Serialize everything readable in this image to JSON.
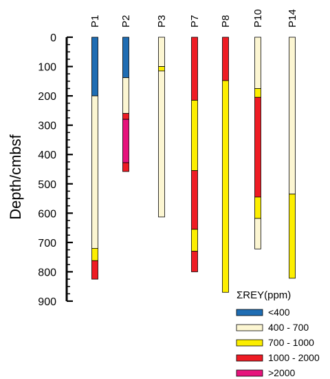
{
  "chart_data": {
    "type": "bar",
    "ylabel": "Depth/cmbsf",
    "ylim": [
      0,
      900
    ],
    "y_inverted": true,
    "y_ticks": [
      0,
      100,
      200,
      300,
      400,
      500,
      600,
      700,
      800,
      900
    ],
    "grid": false,
    "legend_position": "bottom-right",
    "categories": [
      "P1",
      "P2",
      "P3",
      "P7",
      "P8",
      "P10",
      "P14"
    ],
    "legend": {
      "title": "ΣREY(ppm)",
      "classes": [
        {
          "id": "lt400",
          "label": "<400",
          "color": "#1f6db3"
        },
        {
          "id": "c400",
          "label": "400 - 700",
          "color": "#fcf6d2"
        },
        {
          "id": "c700",
          "label": "700 - 1000",
          "color": "#fcee00"
        },
        {
          "id": "c1000",
          "label": "1000 - 2000",
          "color": "#ee1c24"
        },
        {
          "id": "gt2000",
          "label": ">2000",
          "color": "#e6137c"
        }
      ]
    },
    "cores": [
      {
        "name": "P1",
        "segments": [
          {
            "from": 0,
            "to": 200,
            "class": "lt400"
          },
          {
            "from": 200,
            "to": 720,
            "class": "c400"
          },
          {
            "from": 720,
            "to": 762,
            "class": "c700"
          },
          {
            "from": 762,
            "to": 825,
            "class": "c1000"
          }
        ]
      },
      {
        "name": "P2",
        "segments": [
          {
            "from": 0,
            "to": 138,
            "class": "lt400"
          },
          {
            "from": 138,
            "to": 260,
            "class": "c400"
          },
          {
            "from": 260,
            "to": 280,
            "class": "c1000"
          },
          {
            "from": 280,
            "to": 428,
            "class": "gt2000"
          },
          {
            "from": 428,
            "to": 458,
            "class": "c1000"
          }
        ]
      },
      {
        "name": "P3",
        "segments": [
          {
            "from": 0,
            "to": 100,
            "class": "c400"
          },
          {
            "from": 100,
            "to": 115,
            "class": "c700"
          },
          {
            "from": 115,
            "to": 613,
            "class": "c400"
          }
        ]
      },
      {
        "name": "P7",
        "segments": [
          {
            "from": 0,
            "to": 215,
            "class": "c1000"
          },
          {
            "from": 215,
            "to": 455,
            "class": "c700"
          },
          {
            "from": 455,
            "to": 655,
            "class": "c1000"
          },
          {
            "from": 655,
            "to": 730,
            "class": "c700"
          },
          {
            "from": 730,
            "to": 800,
            "class": "c1000"
          }
        ]
      },
      {
        "name": "P8",
        "segments": [
          {
            "from": 0,
            "to": 148,
            "class": "c1000"
          },
          {
            "from": 148,
            "to": 870,
            "class": "c700"
          }
        ]
      },
      {
        "name": "P10",
        "segments": [
          {
            "from": 0,
            "to": 175,
            "class": "c400"
          },
          {
            "from": 175,
            "to": 205,
            "class": "c700"
          },
          {
            "from": 205,
            "to": 545,
            "class": "c1000"
          },
          {
            "from": 545,
            "to": 618,
            "class": "c700"
          },
          {
            "from": 618,
            "to": 722,
            "class": "c400"
          }
        ]
      },
      {
        "name": "P14",
        "segments": [
          {
            "from": 0,
            "to": 535,
            "class": "c400"
          },
          {
            "from": 535,
            "to": 822,
            "class": "c700"
          }
        ]
      }
    ]
  }
}
